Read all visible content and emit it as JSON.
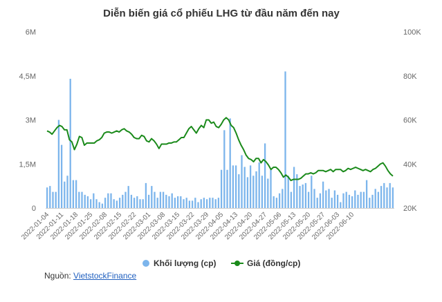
{
  "chart_data": {
    "type": "bar+line",
    "title": "Diễn biến giá cổ phiếu LHG từ đầu năm đến nay",
    "left_axis": {
      "ticks": [
        "0",
        "1,5M",
        "3M",
        "4,5M",
        "6M"
      ],
      "values": [
        0,
        1500000,
        3000000,
        4500000,
        6000000
      ],
      "range": [
        0,
        6000000
      ]
    },
    "right_axis": {
      "ticks": [
        "20K",
        "40K",
        "60K",
        "80K",
        "100K"
      ],
      "values": [
        20000,
        40000,
        60000,
        80000,
        100000
      ],
      "range": [
        20000,
        100000
      ]
    },
    "x_tick_labels": [
      "2022-01-04",
      "2022-01-11",
      "2022-01-18",
      "2022-01-25",
      "2022-02-08",
      "2022-02-15",
      "2022-02-22",
      "2022-03-01",
      "2022-03-08",
      "2022-03-15",
      "2022-03-22",
      "2022-03-29",
      "2022-04-05",
      "2022-04-13",
      "2022-04-20",
      "2022-04-27",
      "2022-05-06",
      "2022-05-13",
      "2022-05-20",
      "2022-05-27",
      "2022-06-03",
      "2022-06-10"
    ],
    "x_tick_indices": [
      0,
      5,
      10,
      15,
      20,
      25,
      30,
      35,
      40,
      45,
      50,
      55,
      60,
      65,
      70,
      75,
      80,
      85,
      90,
      95,
      100,
      105
    ],
    "series": [
      {
        "name": "Khối lượng (cp)",
        "type": "bar",
        "color": "#7cb5ec",
        "values": [
          700000,
          750000,
          550000,
          550000,
          3000000,
          2150000,
          900000,
          1100000,
          4400000,
          950000,
          950000,
          550000,
          550000,
          450000,
          400000,
          300000,
          500000,
          300000,
          200000,
          150000,
          350000,
          500000,
          500000,
          300000,
          250000,
          350000,
          450000,
          550000,
          750000,
          450000,
          350000,
          400000,
          300000,
          300000,
          850000,
          450000,
          750000,
          550000,
          350000,
          550000,
          550000,
          450000,
          400000,
          500000,
          350000,
          400000,
          400000,
          300000,
          350000,
          250000,
          250000,
          350000,
          200000,
          300000,
          350000,
          300000,
          350000,
          350000,
          300000,
          350000,
          1300000,
          2650000,
          1300000,
          3050000,
          1450000,
          1450000,
          1150000,
          1800000,
          1400000,
          1050000,
          1450000,
          1100000,
          1250000,
          1550000,
          1100000,
          2200000,
          1000000,
          1300000,
          400000,
          350000,
          500000,
          650000,
          4650000,
          1100000,
          550000,
          1400000,
          1150000,
          750000,
          800000,
          850000,
          550000,
          1100000,
          650000,
          350000,
          500000,
          900000,
          600000,
          650000,
          350000,
          600000,
          450000,
          200000,
          500000,
          550000,
          450000,
          400000,
          600000,
          450000,
          550000,
          550000,
          950000,
          350000,
          450000,
          650000,
          550000,
          750000,
          850000,
          700000,
          850000,
          700000
        ],
        "x_indices": [
          0,
          1,
          2,
          3,
          4,
          5,
          6,
          7,
          8,
          9,
          10,
          11,
          12,
          13,
          14,
          15,
          16,
          17,
          18,
          19,
          20,
          21,
          22,
          23,
          24,
          25,
          26,
          27,
          28,
          29,
          30,
          31,
          32,
          33,
          34,
          35,
          36,
          37,
          38,
          39,
          40,
          41,
          42,
          43,
          44,
          45,
          46,
          47,
          48,
          49,
          50,
          51,
          52,
          53,
          54,
          55,
          56,
          57,
          58,
          59,
          60,
          61,
          62,
          63,
          64,
          65,
          66,
          67,
          68,
          69,
          70,
          71,
          72,
          73,
          74,
          75,
          76,
          77,
          78,
          79,
          80,
          81,
          82,
          83,
          84,
          85,
          86,
          87,
          88,
          89,
          90,
          91,
          92,
          93,
          94,
          95,
          96,
          97,
          98,
          99,
          100,
          101,
          102,
          103,
          104,
          105,
          106,
          107,
          108,
          109,
          110,
          111,
          112,
          113,
          114,
          115,
          116,
          117,
          118,
          119
        ]
      },
      {
        "name": "Giá (đồng/cp)",
        "type": "line",
        "color": "#1a8a1a",
        "points": [
          [
            0,
            55000
          ],
          [
            2,
            54500
          ],
          [
            4,
            53500
          ],
          [
            6,
            55000
          ],
          [
            8,
            56500
          ],
          [
            10,
            57500
          ],
          [
            12,
            57000
          ],
          [
            14,
            55500
          ],
          [
            16,
            55500
          ],
          [
            18,
            51000
          ],
          [
            20,
            50000
          ],
          [
            22,
            46500
          ],
          [
            24,
            49000
          ],
          [
            26,
            52500
          ],
          [
            28,
            52000
          ],
          [
            30,
            48500
          ],
          [
            32,
            49500
          ],
          [
            34,
            49500
          ],
          [
            36,
            49500
          ],
          [
            38,
            49500
          ],
          [
            40,
            50500
          ],
          [
            42,
            51000
          ],
          [
            44,
            52000
          ],
          [
            46,
            54000
          ],
          [
            48,
            54500
          ],
          [
            50,
            54500
          ],
          [
            52,
            54000
          ],
          [
            54,
            54500
          ],
          [
            56,
            55000
          ],
          [
            58,
            54500
          ],
          [
            60,
            55500
          ],
          [
            62,
            56000
          ],
          [
            64,
            55000
          ],
          [
            66,
            54500
          ],
          [
            68,
            53500
          ],
          [
            70,
            52000
          ],
          [
            72,
            51500
          ],
          [
            74,
            51500
          ],
          [
            76,
            53000
          ],
          [
            78,
            52500
          ],
          [
            80,
            50500
          ],
          [
            82,
            50000
          ],
          [
            84,
            51500
          ],
          [
            86,
            50500
          ],
          [
            88,
            49000
          ],
          [
            90,
            47000
          ],
          [
            92,
            49000
          ],
          [
            94,
            49000
          ],
          [
            96,
            49000
          ],
          [
            98,
            49500
          ],
          [
            100,
            49500
          ],
          [
            102,
            50000
          ],
          [
            104,
            50000
          ],
          [
            106,
            51000
          ],
          [
            108,
            52000
          ],
          [
            110,
            52000
          ],
          [
            112,
            54000
          ],
          [
            114,
            56000
          ],
          [
            116,
            57000
          ],
          [
            118,
            55500
          ],
          [
            120,
            54000
          ],
          [
            122,
            56000
          ],
          [
            124,
            57500
          ],
          [
            126,
            56500
          ],
          [
            128,
            60000
          ],
          [
            130,
            60000
          ],
          [
            132,
            58500
          ],
          [
            134,
            59000
          ],
          [
            136,
            57000
          ],
          [
            138,
            56500
          ],
          [
            140,
            58000
          ],
          [
            142,
            60000
          ],
          [
            144,
            61000
          ],
          [
            146,
            60000
          ],
          [
            148,
            57500
          ],
          [
            150,
            56500
          ],
          [
            152,
            54000
          ],
          [
            154,
            51000
          ],
          [
            156,
            48500
          ],
          [
            158,
            46500
          ],
          [
            160,
            44000
          ],
          [
            162,
            42500
          ],
          [
            164,
            42000
          ],
          [
            166,
            41000
          ],
          [
            168,
            42500
          ],
          [
            170,
            42500
          ],
          [
            172,
            40500
          ],
          [
            174,
            42000
          ],
          [
            176,
            41000
          ],
          [
            178,
            39500
          ],
          [
            180,
            37500
          ],
          [
            182,
            38500
          ],
          [
            184,
            38500
          ],
          [
            186,
            37500
          ],
          [
            188,
            36000
          ],
          [
            190,
            34000
          ],
          [
            192,
            35000
          ],
          [
            194,
            34000
          ],
          [
            196,
            32500
          ],
          [
            198,
            33000
          ],
          [
            200,
            33000
          ],
          [
            202,
            33000
          ],
          [
            204,
            33500
          ],
          [
            206,
            34500
          ],
          [
            208,
            35500
          ],
          [
            210,
            35500
          ],
          [
            212,
            36000
          ],
          [
            214,
            35500
          ],
          [
            216,
            36000
          ],
          [
            218,
            37000
          ],
          [
            220,
            37000
          ],
          [
            222,
            37000
          ],
          [
            224,
            36500
          ],
          [
            226,
            37000
          ],
          [
            228,
            37500
          ],
          [
            230,
            36500
          ],
          [
            232,
            37500
          ],
          [
            234,
            37500
          ],
          [
            236,
            37500
          ],
          [
            238,
            36500
          ],
          [
            240,
            37000
          ],
          [
            242,
            38000
          ],
          [
            244,
            37500
          ],
          [
            246,
            38000
          ],
          [
            248,
            38500
          ],
          [
            250,
            38000
          ],
          [
            252,
            37500
          ],
          [
            254,
            37000
          ],
          [
            256,
            37500
          ],
          [
            258,
            37000
          ],
          [
            260,
            36500
          ],
          [
            262,
            37500
          ],
          [
            264,
            38000
          ],
          [
            266,
            39000
          ],
          [
            268,
            40000
          ],
          [
            270,
            40500
          ],
          [
            272,
            39000
          ],
          [
            274,
            37000
          ],
          [
            276,
            35500
          ],
          [
            278,
            34500
          ]
        ],
        "x_max": 278
      }
    ],
    "legend": {
      "position": "bottom"
    },
    "grid": false
  },
  "source": {
    "label": "Nguồn: ",
    "link_text": "VietstockFinance"
  }
}
